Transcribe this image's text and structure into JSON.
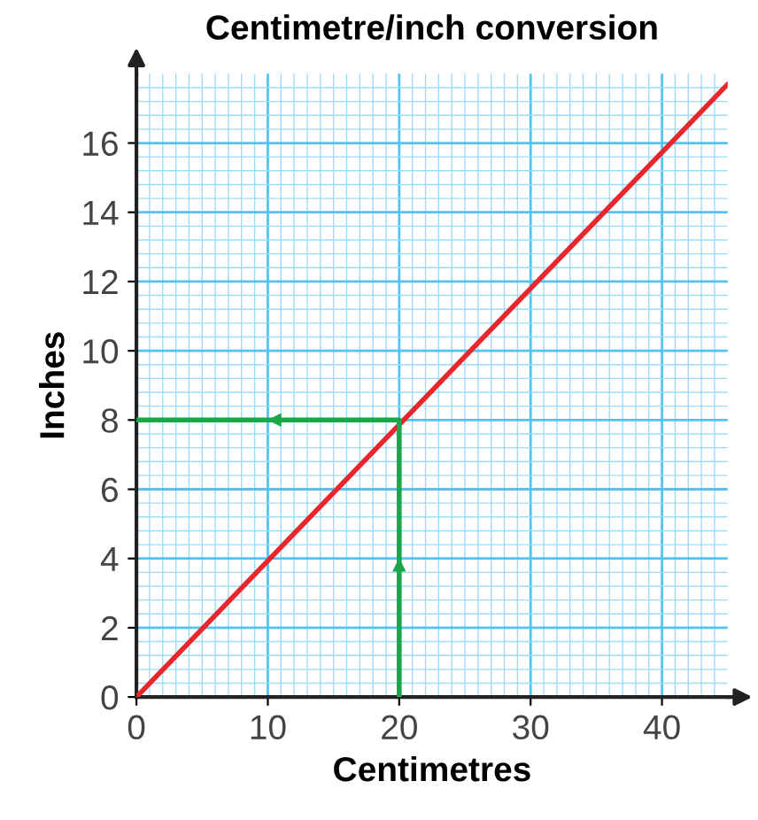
{
  "chart_data": {
    "type": "line",
    "title": "Centimetre/inch conversion",
    "xlabel": "Centimetres",
    "ylabel": "Inches",
    "xlim": [
      0,
      45
    ],
    "ylim": [
      0,
      18
    ],
    "xticks": [
      0,
      {
        "value": 1,
        "label": null
      },
      {
        "value": 2,
        "label": null
      },
      {
        "value": 3,
        "label": null
      },
      {
        "value": 4,
        "label": null
      },
      {
        "value": 5,
        "label": null
      },
      {
        "value": 6,
        "label": null
      },
      {
        "value": 7,
        "label": null
      },
      {
        "value": 8,
        "label": null
      },
      {
        "value": 9,
        "label": null
      },
      10,
      {
        "value": 11,
        "label": null
      },
      {
        "value": 12,
        "label": null
      },
      {
        "value": 13,
        "label": null
      },
      {
        "value": 14,
        "label": null
      },
      {
        "value": 15,
        "label": null
      },
      {
        "value": 16,
        "label": null
      },
      {
        "value": 17,
        "label": null
      },
      {
        "value": 18,
        "label": null
      },
      {
        "value": 19,
        "label": null
      },
      20,
      {
        "value": 21,
        "label": null
      },
      {
        "value": 22,
        "label": null
      },
      {
        "value": 23,
        "label": null
      },
      {
        "value": 24,
        "label": null
      },
      {
        "value": 25,
        "label": null
      },
      {
        "value": 26,
        "label": null
      },
      {
        "value": 27,
        "label": null
      },
      {
        "value": 28,
        "label": null
      },
      {
        "value": 29,
        "label": null
      },
      30,
      {
        "value": 31,
        "label": null
      },
      {
        "value": 32,
        "label": null
      },
      {
        "value": 33,
        "label": null
      },
      {
        "value": 34,
        "label": null
      },
      {
        "value": 35,
        "label": null
      },
      {
        "value": 36,
        "label": null
      },
      {
        "value": 37,
        "label": null
      },
      {
        "value": 38,
        "label": null
      },
      {
        "value": 39,
        "label": null
      },
      40,
      {
        "value": 41,
        "label": null
      },
      {
        "value": 42,
        "label": null
      },
      {
        "value": 43,
        "label": null
      },
      {
        "value": 44,
        "label": null
      }
    ],
    "yticks": [
      0,
      {
        "value": 0.4,
        "label": null
      },
      {
        "value": 0.8,
        "label": null
      },
      {
        "value": 1.2,
        "label": null
      },
      {
        "value": 1.6,
        "label": null
      },
      2,
      {
        "value": 2.4,
        "label": null
      },
      {
        "value": 2.8,
        "label": null
      },
      {
        "value": 3.2,
        "label": null
      },
      {
        "value": 3.6,
        "label": null
      },
      4,
      {
        "value": 4.4,
        "label": null
      },
      {
        "value": 4.8,
        "label": null
      },
      {
        "value": 5.2,
        "label": null
      },
      {
        "value": 5.6,
        "label": null
      },
      6,
      {
        "value": 6.4,
        "label": null
      },
      {
        "value": 6.8,
        "label": null
      },
      {
        "value": 7.2,
        "label": null
      },
      {
        "value": 7.6,
        "label": null
      },
      8,
      {
        "value": 8.4,
        "label": null
      },
      {
        "value": 8.8,
        "label": null
      },
      {
        "value": 9.2,
        "label": null
      },
      {
        "value": 9.6,
        "label": null
      },
      10,
      {
        "value": 10.4,
        "label": null
      },
      {
        "value": 10.8,
        "label": null
      },
      {
        "value": 11.2,
        "label": null
      },
      {
        "value": 11.6,
        "label": null
      },
      12,
      {
        "value": 12.4,
        "label": null
      },
      {
        "value": 12.8,
        "label": null
      },
      {
        "value": 13.2,
        "label": null
      },
      {
        "value": 13.6,
        "label": null
      },
      14,
      {
        "value": 14.4,
        "label": null
      },
      {
        "value": 14.8,
        "label": null
      },
      {
        "value": 15.2,
        "label": null
      },
      {
        "value": 15.6,
        "label": null
      },
      16,
      {
        "value": 16.4,
        "label": null
      },
      {
        "value": 16.8,
        "label": null
      },
      {
        "value": 17.2,
        "label": null
      },
      {
        "value": 17.6,
        "label": null
      }
    ],
    "grid": true,
    "series": [
      {
        "color": "#e8262b",
        "x": [
          0,
          45
        ],
        "values": [
          0,
          17.7
        ]
      },
      {
        "color": "#1aa64a",
        "x": [
          20,
          20,
          0
        ],
        "values": [
          0,
          8,
          8
        ]
      }
    ]
  }
}
